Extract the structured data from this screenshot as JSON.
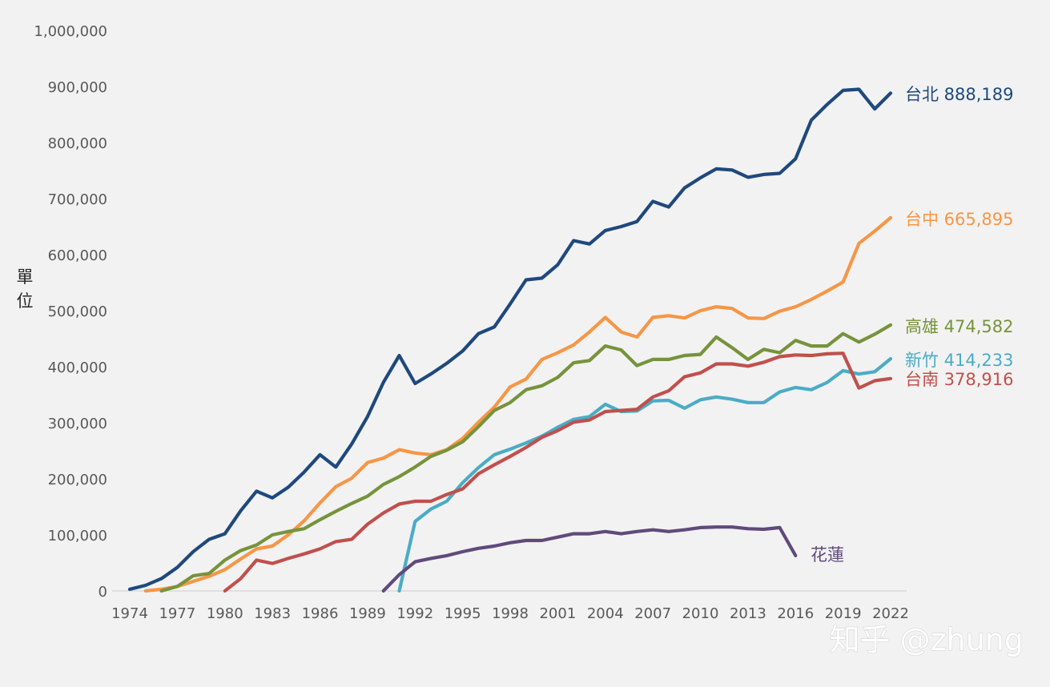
{
  "chart_data": {
    "type": "line",
    "ylabel": "單位",
    "ylim": [
      0,
      1000000
    ],
    "yticks": [
      0,
      100000,
      200000,
      300000,
      400000,
      500000,
      600000,
      700000,
      800000,
      900000,
      1000000
    ],
    "ytick_labels": [
      "0",
      "100,000",
      "200,000",
      "300,000",
      "400,000",
      "500,000",
      "600,000",
      "700,000",
      "800,000",
      "900,000",
      "1,000,000"
    ],
    "xlim": [
      1974,
      2022
    ],
    "xticks": [
      1974,
      1977,
      1980,
      1983,
      1986,
      1989,
      1992,
      1995,
      1998,
      2001,
      2004,
      2007,
      2010,
      2013,
      2016,
      2019,
      2022
    ],
    "xtick_labels": [
      "1974",
      "1977",
      "1980",
      "1983",
      "1986",
      "1989",
      "1992",
      "1995",
      "1998",
      "2001",
      "2004",
      "2007",
      "2010",
      "2013",
      "2016",
      "2019",
      "2022"
    ],
    "grid": false,
    "legend": "none",
    "series": [
      {
        "name": "台北",
        "label": "台北 888,189",
        "color": "#1f497d",
        "x": [
          1974,
          1975,
          1976,
          1977,
          1978,
          1979,
          1980,
          1981,
          1982,
          1983,
          1984,
          1985,
          1986,
          1987,
          1988,
          1989,
          1990,
          1991,
          1992,
          1993,
          1994,
          1995,
          1996,
          1997,
          1998,
          1999,
          2000,
          2001,
          2002,
          2003,
          2004,
          2005,
          2006,
          2007,
          2008,
          2009,
          2010,
          2011,
          2012,
          2013,
          2014,
          2015,
          2016,
          2017,
          2018,
          2019,
          2020,
          2021,
          2022
        ],
        "values": [
          3000,
          10000,
          22000,
          42000,
          70000,
          92000,
          102000,
          143000,
          178000,
          166000,
          185000,
          212000,
          243000,
          221000,
          262000,
          311000,
          372000,
          420000,
          370000,
          387000,
          406000,
          428000,
          459000,
          471000,
          512000,
          555000,
          558000,
          582000,
          625000,
          619000,
          643000,
          650000,
          659000,
          695000,
          685000,
          719000,
          737000,
          753000,
          751000,
          738000,
          743000,
          745000,
          771000,
          840000,
          868000,
          893000,
          895000,
          860000,
          888189
        ]
      },
      {
        "name": "台中",
        "label": "台中 665,895",
        "color": "#f79646",
        "x": [
          1975,
          1976,
          1977,
          1978,
          1979,
          1980,
          1981,
          1982,
          1983,
          1984,
          1985,
          1986,
          1987,
          1988,
          1989,
          1990,
          1991,
          1992,
          1993,
          1994,
          1995,
          1996,
          1997,
          1998,
          1999,
          2000,
          2001,
          2002,
          2003,
          2004,
          2005,
          2006,
          2007,
          2008,
          2009,
          2010,
          2011,
          2012,
          2013,
          2014,
          2015,
          2016,
          2017,
          2018,
          2019,
          2020,
          2021,
          2022
        ],
        "values": [
          0,
          3000,
          8000,
          17000,
          26000,
          38000,
          57000,
          75000,
          80000,
          100000,
          125000,
          157000,
          186000,
          201000,
          229000,
          237000,
          252000,
          246000,
          243000,
          252000,
          272000,
          301000,
          328000,
          364000,
          378000,
          413000,
          425000,
          439000,
          462000,
          488000,
          462000,
          453000,
          488000,
          491000,
          487000,
          500000,
          507000,
          504000,
          487000,
          486000,
          499000,
          507000,
          520000,
          535000,
          551000,
          620000,
          642000,
          665895
        ]
      },
      {
        "name": "高雄",
        "label": "高雄 474,582",
        "color": "#77933c",
        "x": [
          1976,
          1977,
          1978,
          1979,
          1980,
          1981,
          1982,
          1983,
          1984,
          1985,
          1986,
          1987,
          1988,
          1989,
          1990,
          1991,
          1992,
          1993,
          1994,
          1995,
          1996,
          1997,
          1998,
          1999,
          2000,
          2001,
          2002,
          2003,
          2004,
          2005,
          2006,
          2007,
          2008,
          2009,
          2010,
          2011,
          2012,
          2013,
          2014,
          2015,
          2016,
          2017,
          2018,
          2019,
          2020,
          2021,
          2022
        ],
        "values": [
          0,
          8000,
          27000,
          31000,
          55000,
          72000,
          82000,
          100000,
          106000,
          111000,
          127000,
          142000,
          156000,
          169000,
          190000,
          204000,
          221000,
          240000,
          251000,
          266000,
          293000,
          322000,
          336000,
          359000,
          366000,
          381000,
          407000,
          411000,
          437000,
          430000,
          402000,
          413000,
          413000,
          420000,
          422000,
          453000,
          434000,
          413000,
          431000,
          425000,
          447000,
          437000,
          437000,
          459000,
          444000,
          458000,
          474582
        ]
      },
      {
        "name": "新竹",
        "label": "新竹 414,233",
        "color": "#4bacc6",
        "x": [
          1991,
          1992,
          1993,
          1994,
          1995,
          1996,
          1997,
          1998,
          1999,
          2000,
          2001,
          2002,
          2003,
          2004,
          2005,
          2006,
          2007,
          2008,
          2009,
          2010,
          2011,
          2012,
          2013,
          2014,
          2015,
          2016,
          2017,
          2018,
          2019,
          2020,
          2021,
          2022
        ],
        "values": [
          0,
          124000,
          146000,
          160000,
          193000,
          220000,
          243000,
          253000,
          264000,
          276000,
          292000,
          306000,
          311000,
          333000,
          320000,
          321000,
          339000,
          340000,
          326000,
          341000,
          346000,
          342000,
          336000,
          336000,
          355000,
          363000,
          359000,
          372000,
          393000,
          387000,
          391000,
          414233
        ]
      },
      {
        "name": "台南",
        "label": "台南 378,916",
        "color": "#c0504d",
        "x": [
          1980,
          1981,
          1982,
          1983,
          1984,
          1985,
          1986,
          1987,
          1988,
          1989,
          1990,
          1991,
          1992,
          1993,
          1994,
          1995,
          1996,
          1997,
          1998,
          1999,
          2000,
          2001,
          2002,
          2003,
          2004,
          2005,
          2006,
          2007,
          2008,
          2009,
          2010,
          2011,
          2012,
          2013,
          2014,
          2015,
          2016,
          2017,
          2018,
          2019,
          2020,
          2021,
          2022
        ],
        "values": [
          0,
          22000,
          55000,
          49000,
          58000,
          66000,
          75000,
          88000,
          92000,
          119000,
          139000,
          155000,
          160000,
          160000,
          172000,
          182000,
          209000,
          225000,
          240000,
          256000,
          274000,
          286000,
          301000,
          305000,
          320000,
          322000,
          324000,
          346000,
          357000,
          382000,
          389000,
          405000,
          405000,
          401000,
          408000,
          418000,
          421000,
          420000,
          423000,
          424000,
          362000,
          375000,
          378916
        ]
      },
      {
        "name": "花蓮",
        "label": "花蓮",
        "color": "#604a7b",
        "x": [
          1990,
          1991,
          1992,
          1993,
          1994,
          1995,
          1996,
          1997,
          1998,
          1999,
          2000,
          2001,
          2002,
          2003,
          2004,
          2005,
          2006,
          2007,
          2008,
          2009,
          2010,
          2011,
          2012,
          2013,
          2014,
          2015,
          2016
        ],
        "values": [
          0,
          29000,
          52000,
          58000,
          63000,
          70000,
          76000,
          80000,
          86000,
          90000,
          90000,
          96000,
          102000,
          102000,
          106000,
          102000,
          106000,
          109000,
          106000,
          109000,
          113000,
          114000,
          114000,
          111000,
          110000,
          113000,
          63000
        ]
      }
    ]
  },
  "watermark": "知乎 @zhung"
}
